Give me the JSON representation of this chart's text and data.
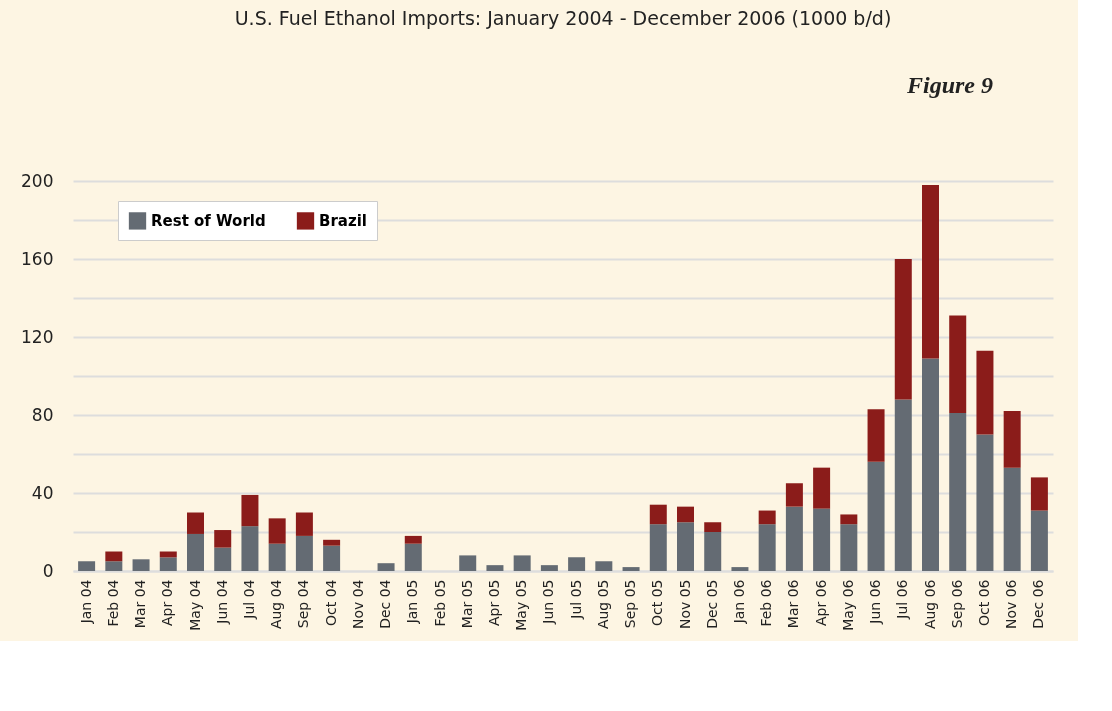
{
  "chart_data": {
    "type": "bar",
    "title": "U.S. Fuel Ethanol Imports: January 2004 - December 2006 (1000 b/d)",
    "annotations": [
      "Figure 9"
    ],
    "categories": [
      "Jan 04",
      "Feb 04",
      "Mar 04",
      "Apr 04",
      "May 04",
      "Jun 04",
      "Jul 04",
      "Aug 04",
      "Sep 04",
      "Oct 04",
      "Nov 04",
      "Dec 04",
      "Jan 05",
      "Feb 05",
      "Mar 05",
      "Apr 05",
      "May 05",
      "Jun 05",
      "Jul 05",
      "Aug 05",
      "Sep 05",
      "Oct 05",
      "Nov 05",
      "Dec 05",
      "Jan 06",
      "Feb 06",
      "Mar 06",
      "Apr 06",
      "May 06",
      "Jun 06",
      "Jul 06",
      "Aug 06",
      "Sep 06",
      "Oct 06",
      "Nov 06",
      "Dec 06"
    ],
    "stacked": true,
    "series": [
      {
        "name": "Rest of World",
        "color": "#646b73",
        "values": [
          5,
          5,
          6,
          7,
          19,
          12,
          23,
          14,
          18,
          13,
          0,
          4,
          14,
          0,
          8,
          3,
          8,
          3,
          7,
          5,
          2,
          24,
          25,
          20,
          2,
          24,
          33,
          32,
          24,
          56,
          88,
          109,
          81,
          70,
          53,
          31
        ]
      },
      {
        "name": "Brazil",
        "color": "#8b1c1a",
        "values": [
          0,
          5,
          0,
          3,
          11,
          9,
          16,
          13,
          12,
          3,
          0,
          0,
          4,
          0,
          0,
          0,
          0,
          0,
          0,
          0,
          0,
          10,
          8,
          5,
          0,
          7,
          12,
          21,
          5,
          27,
          72,
          89,
          50,
          43,
          29,
          17
        ]
      }
    ],
    "ylim": [
      0,
      200
    ],
    "yticks": [
      0,
      {
        "value": 20,
        "label": null
      },
      40,
      {
        "value": 60,
        "label": null
      },
      80,
      {
        "value": 100,
        "label": null
      },
      120,
      {
        "value": 140,
        "label": null
      },
      160,
      {
        "value": 180,
        "label": null
      },
      200
    ],
    "grid": "y",
    "legend": "top left"
  }
}
